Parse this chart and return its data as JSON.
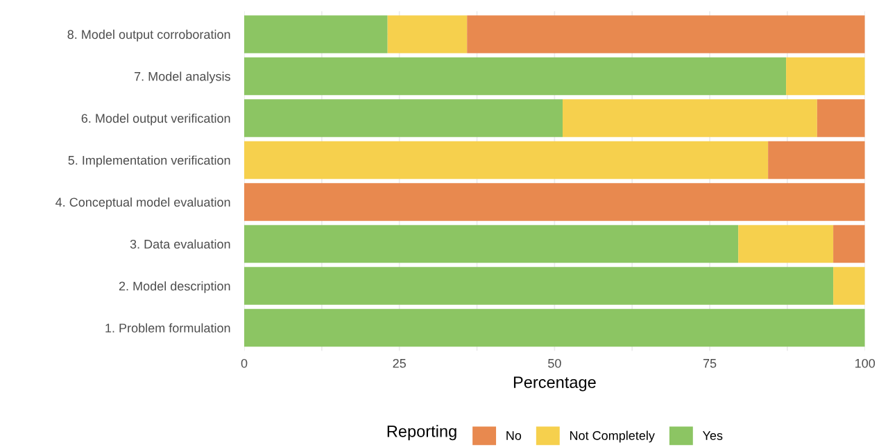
{
  "chart_data": {
    "type": "bar",
    "orientation": "horizontal",
    "stacked": true,
    "xlabel": "Percentage",
    "legend_title": "Reporting",
    "legend": "bottom",
    "grid": true,
    "categories": [
      "8. Model output corroboration",
      "7. Model analysis",
      "6. Model output verification",
      "5. Implementation verification",
      "4. Conceptual model evaluation",
      "3. Data evaluation",
      "2. Model description",
      "1. Problem formulation"
    ],
    "series": [
      {
        "name": "Yes",
        "color": "#8cc563",
        "values": [
          23.1,
          87.3,
          51.3,
          0,
          0,
          79.6,
          94.9,
          100
        ]
      },
      {
        "name": "Not Completely",
        "color": "#f6d04d",
        "values": [
          12.8,
          12.7,
          41.0,
          84.4,
          0,
          15.3,
          5.1,
          0
        ]
      },
      {
        "name": "No",
        "color": "#e8894f",
        "values": [
          64.1,
          0,
          7.7,
          15.6,
          100,
          5.1,
          0,
          0
        ]
      }
    ],
    "xlim": [
      0,
      100
    ],
    "xticks": [
      0,
      {
        "value": 12.5,
        "label": null
      },
      25,
      {
        "value": 37.5,
        "label": null
      },
      50,
      {
        "value": 62.5,
        "label": null
      },
      75,
      {
        "value": 87.5,
        "label": null
      },
      100
    ]
  }
}
